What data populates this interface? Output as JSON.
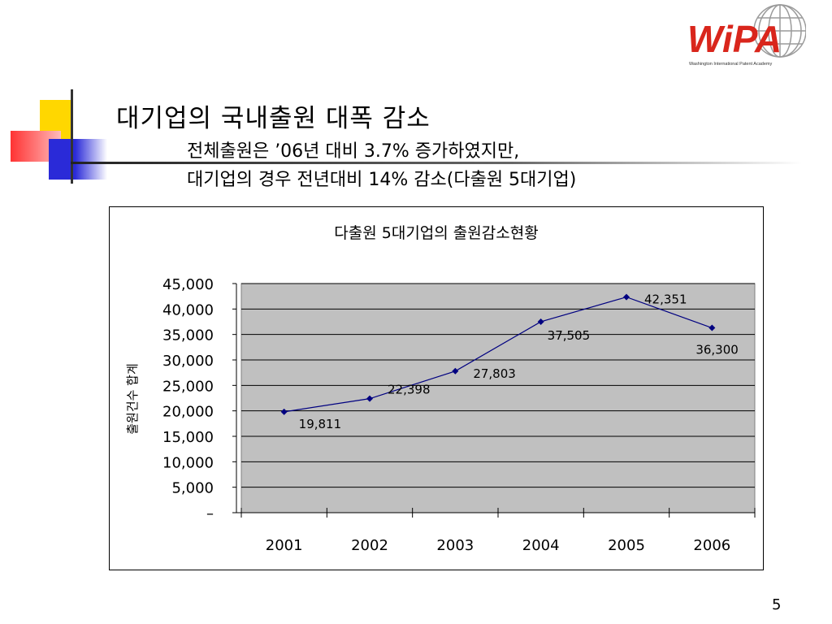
{
  "slide": {
    "title": "대기업의 국내출원 대폭 감소",
    "subtitle_line1": "전체출원은 ’06년 대비 3.7% 증가하였지만,",
    "subtitle_line2": "대기업의 경우 전년대비 14% 감소(다출원 5대기업)",
    "page_number": "5"
  },
  "logo": {
    "text": "WiPA",
    "tagline": "Washington International Patent Academy",
    "color": "#d9261c"
  },
  "chart_data": {
    "type": "line",
    "title": "다출원 5대기업의 출원감소현황",
    "xlabel": "",
    "ylabel": "출원건수 합계",
    "categories": [
      "2001",
      "2002",
      "2003",
      "2004",
      "2005",
      "2006"
    ],
    "values": [
      19811,
      22398,
      27803,
      37505,
      42351,
      36300
    ],
    "data_labels": [
      "19,811",
      "22,398",
      "27,803",
      "37,505",
      "42,351",
      "36,300"
    ],
    "ylim": [
      0,
      45000
    ],
    "yticks": [
      0,
      5000,
      10000,
      15000,
      20000,
      25000,
      30000,
      35000,
      40000,
      45000
    ],
    "ytick_labels": [
      "–",
      "5,000",
      "10,000",
      "15,000",
      "20,000",
      "25,000",
      "30,000",
      "35,000",
      "40,000",
      "45,000"
    ],
    "grid": true,
    "plot_background": "#c0c0c0",
    "line_color": "#000080"
  }
}
